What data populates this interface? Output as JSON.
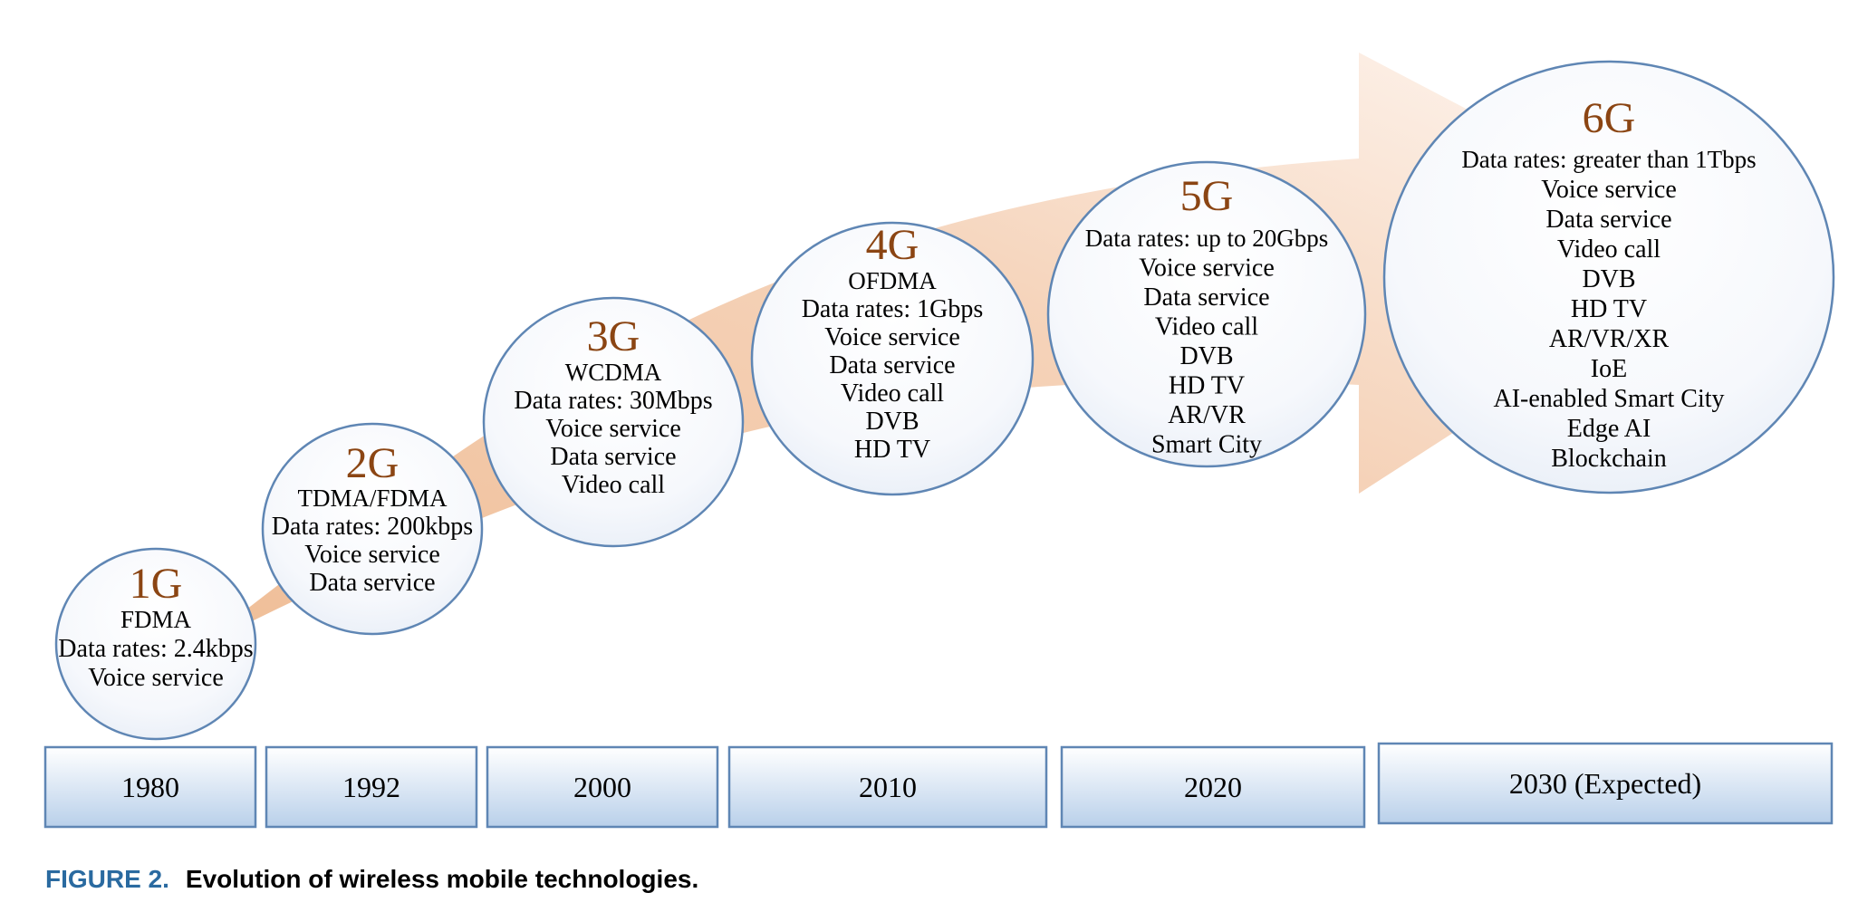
{
  "figure": {
    "number": "FIGURE 2.",
    "caption": "Evolution of wireless mobile technologies."
  },
  "colors": {
    "arrow": "#f2c7a6",
    "circle_stroke": "#5f86b4",
    "title": "#8b4513",
    "year_fill_top": "#ffffff",
    "year_fill_bottom": "#b9d0ea",
    "caption_accent": "#2a6aa0"
  },
  "generations": [
    {
      "title": "1G",
      "lines": [
        "FDMA",
        "Data rates: 2.4kbps",
        "Voice service"
      ],
      "year": "1980"
    },
    {
      "title": "2G",
      "lines": [
        "TDMA/FDMA",
        "Data rates: 200kbps",
        "Voice service",
        "Data service"
      ],
      "year": "1992"
    },
    {
      "title": "3G",
      "lines": [
        "WCDMA",
        "Data rates: 30Mbps",
        "Voice service",
        "Data service",
        "Video call"
      ],
      "year": "2000"
    },
    {
      "title": "4G",
      "lines": [
        "OFDMA",
        "Data rates: 1Gbps",
        "Voice service",
        "Data service",
        "Video call",
        "DVB",
        "HD TV"
      ],
      "year": "2010"
    },
    {
      "title": "5G",
      "lines": [
        "Data rates: up to 20Gbps",
        "Voice service",
        "Data service",
        "Video call",
        "DVB",
        "HD TV",
        "AR/VR",
        "Smart City"
      ],
      "year": "2020"
    },
    {
      "title": "6G",
      "lines": [
        "Data rates: greater than 1Tbps",
        "Voice service",
        "Data service",
        "Video call",
        "DVB",
        "HD TV",
        "AR/VR/XR",
        "IoE",
        "AI-enabled Smart City",
        "Edge AI",
        "Blockchain"
      ],
      "year": "2030 (Expected)"
    }
  ]
}
